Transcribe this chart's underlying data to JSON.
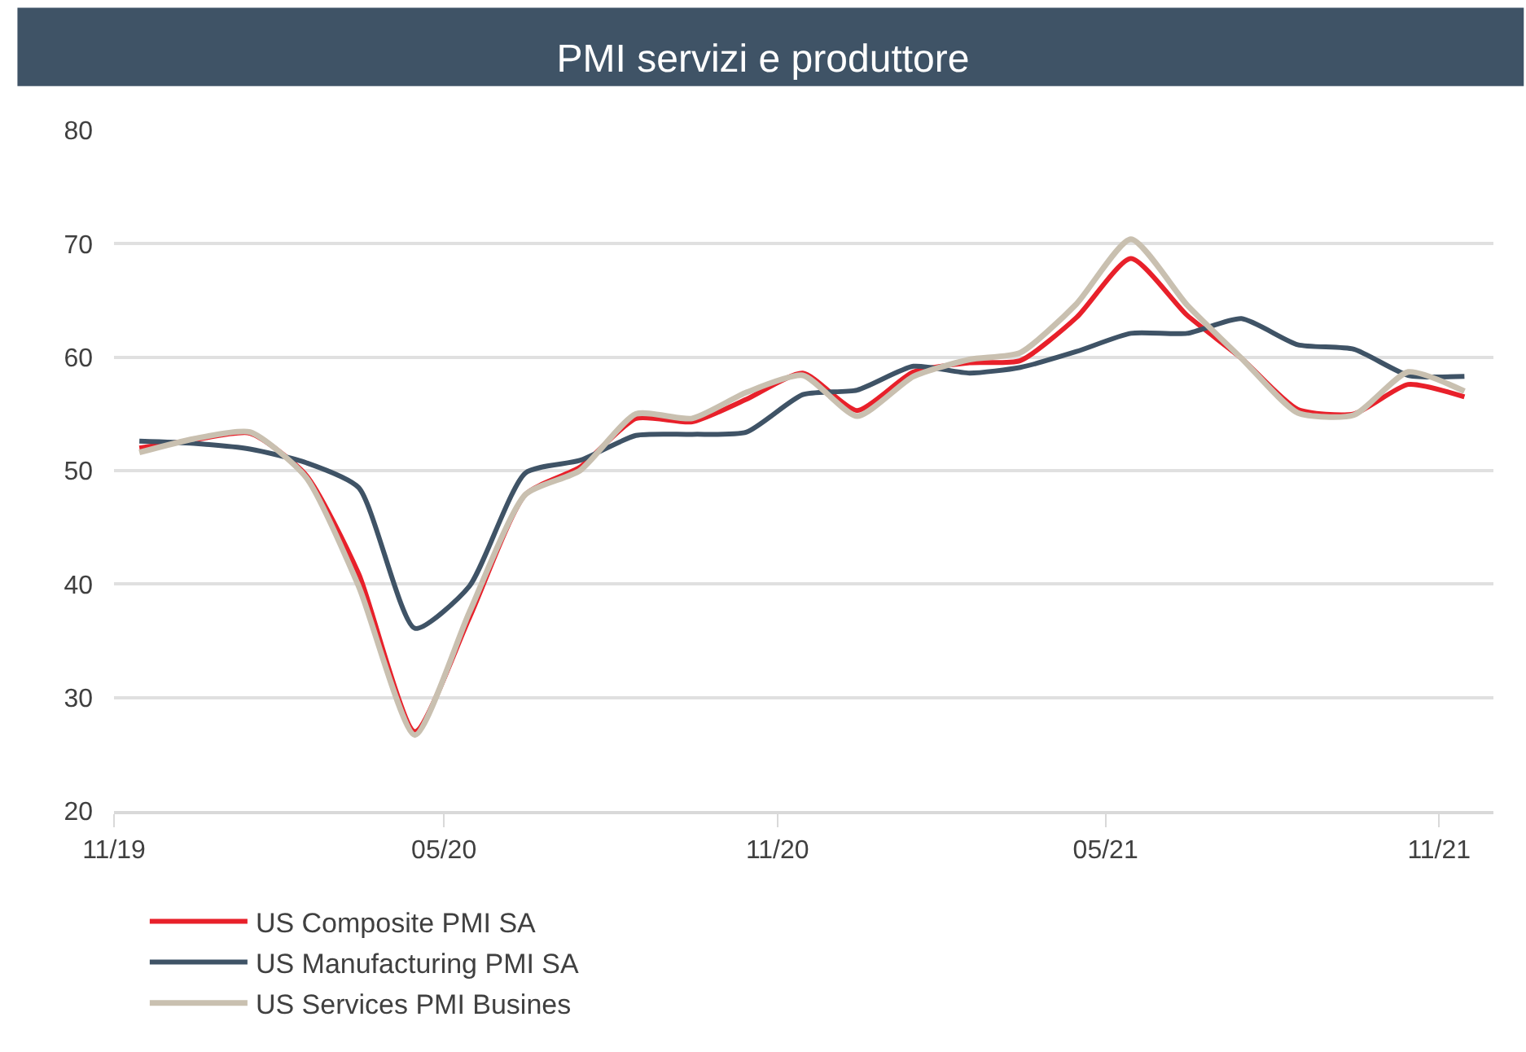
{
  "chart_data": {
    "type": "line",
    "title": "PMI servizi e produttore",
    "x": [
      "2019-11-15",
      "2019-12-15",
      "2020-01-15",
      "2020-02-15",
      "2020-03-15",
      "2020-04-15",
      "2020-05-15",
      "2020-06-15",
      "2020-07-15",
      "2020-08-15",
      "2020-09-15",
      "2020-10-15",
      "2020-11-15",
      "2020-12-15",
      "2021-01-15",
      "2021-02-15",
      "2021-03-15",
      "2021-04-15",
      "2021-05-15",
      "2021-06-15",
      "2021-07-15",
      "2021-08-15",
      "2021-09-15",
      "2021-10-15",
      "2021-11-15"
    ],
    "series": [
      {
        "name": "US Composite PMI SA",
        "color": "#e8202a",
        "values": [
          52.0,
          52.7,
          53.3,
          49.6,
          40.9,
          27.0,
          37.0,
          47.9,
          50.3,
          54.6,
          54.3,
          56.3,
          58.6,
          55.3,
          58.7,
          59.5,
          59.7,
          63.5,
          68.7,
          63.7,
          59.9,
          55.4,
          55.0,
          57.6,
          56.5
        ]
      },
      {
        "name": "US Manufacturing PMI SA",
        "color": "#3f5366",
        "values": [
          52.6,
          52.4,
          51.9,
          50.7,
          48.5,
          36.1,
          39.8,
          49.8,
          50.9,
          53.1,
          53.2,
          53.4,
          56.7,
          57.1,
          59.2,
          58.6,
          59.1,
          60.5,
          62.1,
          62.1,
          63.4,
          61.1,
          60.7,
          58.4,
          58.3
        ]
      },
      {
        "name": "US Services PMI Busines",
        "color": "#c9c0b0",
        "values": [
          51.6,
          52.8,
          53.4,
          49.4,
          39.8,
          26.7,
          37.5,
          47.9,
          50.0,
          55.0,
          54.6,
          56.9,
          58.4,
          54.8,
          58.3,
          59.8,
          60.4,
          64.7,
          70.4,
          64.6,
          59.9,
          55.1,
          54.9,
          58.7,
          57.0
        ]
      }
    ],
    "xlim": [
      "2019-11-01",
      "2021-12-01"
    ],
    "xticks": [
      {
        "value": "2019-11-01",
        "label": "11/19"
      },
      {
        "value": "2020-05-01",
        "label": "05/20"
      },
      {
        "value": "2020-11-01",
        "label": "11/20"
      },
      {
        "value": "2021-05-01",
        "label": "05/21"
      },
      {
        "value": "2021-11-01",
        "label": "11/21"
      }
    ],
    "ylim": [
      20,
      80
    ],
    "yticks": [
      20,
      30,
      40,
      50,
      60,
      70,
      80
    ],
    "grid": "y",
    "legend": "bottom",
    "marker": "none",
    "line_style": "solid"
  }
}
